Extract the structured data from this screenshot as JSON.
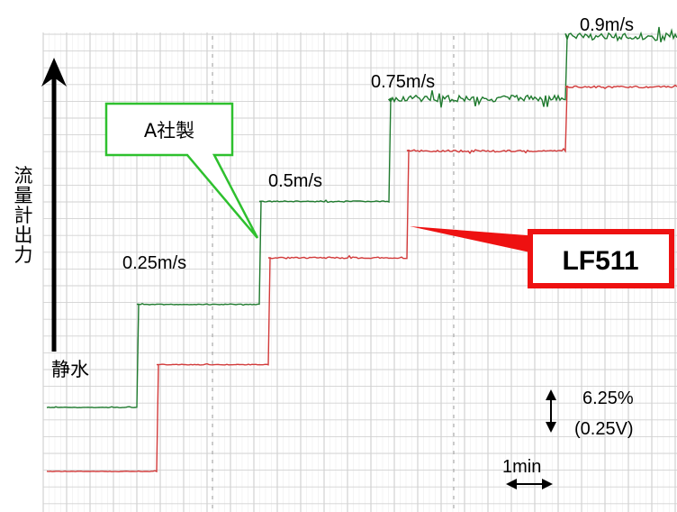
{
  "chart_data": {
    "type": "line",
    "ylabel": "流量計出力",
    "baseline_label": "静水",
    "step_labels": [
      "0.25m/s",
      "0.5m/s",
      "0.75m/s",
      "0.9m/s"
    ],
    "series": [
      {
        "name": "A社製",
        "color": "#1f7a2e",
        "segments": [
          {
            "level": 0,
            "noise": 0.3
          },
          {
            "level": 0.25,
            "noise": 0.4
          },
          {
            "level": 0.5,
            "noise": 0.6
          },
          {
            "level": 0.75,
            "noise": 3.6
          },
          {
            "level": 0.9,
            "noise": 4.2
          }
        ]
      },
      {
        "name": "LF511",
        "color": "#d23a3a",
        "segments": [
          {
            "level": 0,
            "noise": 0.3
          },
          {
            "level": 0.25,
            "noise": 0.4
          },
          {
            "level": 0.5,
            "noise": 0.9
          },
          {
            "level": 0.75,
            "noise": 0.9
          },
          {
            "level": 0.9,
            "noise": 1.0
          }
        ]
      }
    ],
    "scale_annotation": {
      "percent": "6.25%",
      "volts": "(0.25V)"
    },
    "time_annotation": "1min",
    "grid": true
  }
}
